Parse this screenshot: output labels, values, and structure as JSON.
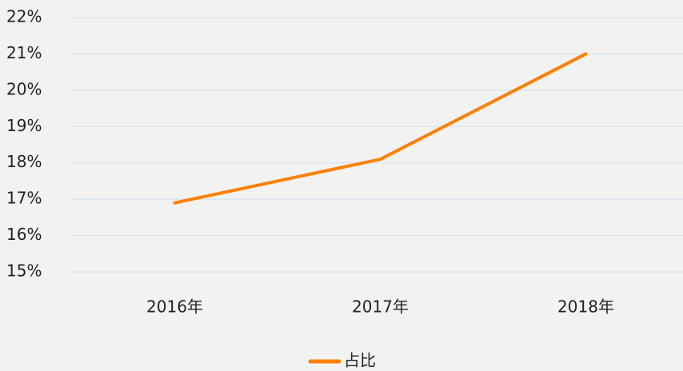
{
  "chart_data": {
    "type": "line",
    "categories": [
      "2016年",
      "2017年",
      "2018年"
    ],
    "series": [
      {
        "name": "占比",
        "color": "#ff8000",
        "values": [
          16.9,
          18.1,
          21.0
        ]
      }
    ],
    "ylim": [
      15,
      22
    ],
    "yticks": [
      {
        "value": 15,
        "label": "15%"
      },
      {
        "value": 16,
        "label": "16%"
      },
      {
        "value": 17,
        "label": "17%"
      },
      {
        "value": 18,
        "label": "18%"
      },
      {
        "value": 19,
        "label": "19%"
      },
      {
        "value": 20,
        "label": "20%"
      },
      {
        "value": 21,
        "label": "21%"
      },
      {
        "value": 22,
        "label": "22%"
      }
    ],
    "grid": true,
    "legend": "bottom"
  }
}
